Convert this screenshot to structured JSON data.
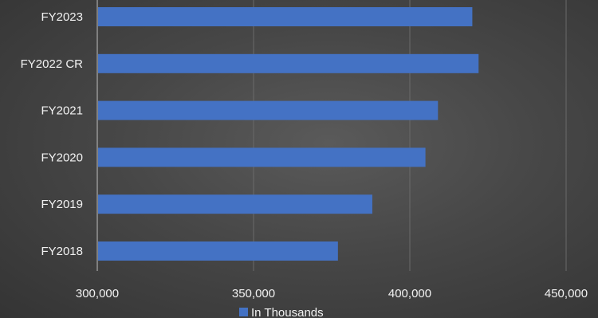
{
  "chart_data": {
    "type": "bar",
    "orientation": "horizontal",
    "categories": [
      "FY2023",
      "FY2022 CR",
      "FY2021",
      "FY2020",
      "FY2019",
      "FY2018"
    ],
    "series": [
      {
        "name": "In Thousands",
        "values": [
          420000,
          422000,
          409000,
          405000,
          388000,
          377000
        ]
      }
    ],
    "xlim": [
      300000,
      450000
    ],
    "xticks": [
      300000,
      350000,
      400000,
      450000
    ],
    "xtick_labels": [
      "300,000",
      "350,000",
      "400,000",
      "450,000"
    ],
    "grid": "vertical",
    "legend": "bottom",
    "bar_color": "#4472C4"
  }
}
